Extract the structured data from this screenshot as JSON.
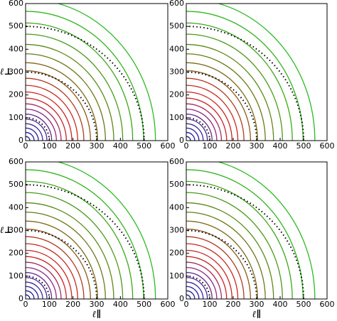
{
  "chart_data": [
    {
      "type": "contour",
      "xlim": [
        0,
        600
      ],
      "ylim": [
        0,
        600
      ],
      "xticks": [
        0,
        100,
        200,
        300,
        400,
        500,
        600
      ],
      "yticks": [
        0,
        100,
        200,
        300,
        400,
        500,
        600
      ],
      "ylabel": "ℓ⊥",
      "circles": [
        100,
        300,
        500
      ],
      "levels": [
        {
          "color": "#1a1aa0",
          "a": 18,
          "b": 18
        },
        {
          "color": "#1a1aa0",
          "a": 36,
          "b": 36
        },
        {
          "color": "#2a22a0",
          "a": 54,
          "b": 55
        },
        {
          "color": "#3a26a0",
          "a": 72,
          "b": 74
        },
        {
          "color": "#4b2a9a",
          "a": 90,
          "b": 94
        },
        {
          "color": "#6a2a90",
          "a": 110,
          "b": 116
        },
        {
          "color": "#8a2b80",
          "a": 130,
          "b": 138
        },
        {
          "color": "#a52a5a",
          "a": 150,
          "b": 161
        },
        {
          "color": "#cc2222",
          "a": 172,
          "b": 186
        },
        {
          "color": "#cc2222",
          "a": 195,
          "b": 213
        },
        {
          "color": "#c82a20",
          "a": 220,
          "b": 242
        },
        {
          "color": "#b03a1e",
          "a": 246,
          "b": 273
        },
        {
          "color": "#8e5a1a",
          "a": 274,
          "b": 306
        },
        {
          "color": "#7d6a16",
          "a": 304,
          "b": 341
        },
        {
          "color": "#6a7a14",
          "a": 337,
          "b": 380
        },
        {
          "color": "#5a8a14",
          "a": 372,
          "b": 421
        },
        {
          "color": "#4a9a16",
          "a": 410,
          "b": 466
        },
        {
          "color": "#3aaa18",
          "a": 452,
          "b": 515
        },
        {
          "color": "#30b41c",
          "a": 498,
          "b": 566
        },
        {
          "color": "#2cba20",
          "a": 548,
          "b": 620
        }
      ]
    },
    {
      "type": "contour",
      "xlim": [
        0,
        600
      ],
      "ylim": [
        0,
        600
      ],
      "xticks": [
        0,
        100,
        200,
        300,
        400,
        500,
        600
      ],
      "yticks": [
        0,
        100,
        200,
        300,
        400,
        500,
        600
      ],
      "circles": [
        100,
        300,
        500
      ],
      "levels": [
        {
          "color": "#1a1aa0",
          "a": 18,
          "b": 18
        },
        {
          "color": "#1a1aa0",
          "a": 36,
          "b": 36
        },
        {
          "color": "#2a22a0",
          "a": 54,
          "b": 55
        },
        {
          "color": "#3a26a0",
          "a": 72,
          "b": 74
        },
        {
          "color": "#4b2a9a",
          "a": 90,
          "b": 94
        },
        {
          "color": "#6a2a90",
          "a": 110,
          "b": 116
        },
        {
          "color": "#8a2b80",
          "a": 130,
          "b": 138
        },
        {
          "color": "#a52a5a",
          "a": 150,
          "b": 161
        },
        {
          "color": "#cc2222",
          "a": 172,
          "b": 186
        },
        {
          "color": "#cc2222",
          "a": 195,
          "b": 213
        },
        {
          "color": "#c82a20",
          "a": 220,
          "b": 242
        },
        {
          "color": "#b03a1e",
          "a": 246,
          "b": 273
        },
        {
          "color": "#8e5a1a",
          "a": 274,
          "b": 306
        },
        {
          "color": "#7d6a16",
          "a": 304,
          "b": 341
        },
        {
          "color": "#6a7a14",
          "a": 337,
          "b": 380
        },
        {
          "color": "#5a8a14",
          "a": 372,
          "b": 421
        },
        {
          "color": "#4a9a16",
          "a": 410,
          "b": 466
        },
        {
          "color": "#3aaa18",
          "a": 452,
          "b": 515
        },
        {
          "color": "#30b41c",
          "a": 498,
          "b": 566
        },
        {
          "color": "#2cba20",
          "a": 548,
          "b": 620
        }
      ]
    },
    {
      "type": "contour",
      "xlim": [
        0,
        600
      ],
      "ylim": [
        0,
        600
      ],
      "xticks": [
        0,
        100,
        200,
        300,
        400,
        500,
        600
      ],
      "yticks": [
        0,
        100,
        200,
        300,
        400,
        500,
        600
      ],
      "ylabel": "ℓ⊥",
      "xlabel": "ℓ∥",
      "circles": [
        100,
        300,
        500
      ],
      "levels": [
        {
          "color": "#1a1aa0",
          "a": 18,
          "b": 18
        },
        {
          "color": "#1a1aa0",
          "a": 36,
          "b": 36
        },
        {
          "color": "#2a22a0",
          "a": 54,
          "b": 55
        },
        {
          "color": "#3a26a0",
          "a": 72,
          "b": 74
        },
        {
          "color": "#4b2a9a",
          "a": 90,
          "b": 94
        },
        {
          "color": "#6a2a90",
          "a": 110,
          "b": 116
        },
        {
          "color": "#8a2b80",
          "a": 130,
          "b": 138
        },
        {
          "color": "#a52a5a",
          "a": 150,
          "b": 161
        },
        {
          "color": "#cc2222",
          "a": 172,
          "b": 186
        },
        {
          "color": "#cc2222",
          "a": 195,
          "b": 213
        },
        {
          "color": "#c82a20",
          "a": 220,
          "b": 242
        },
        {
          "color": "#b03a1e",
          "a": 246,
          "b": 273
        },
        {
          "color": "#8e5a1a",
          "a": 274,
          "b": 306
        },
        {
          "color": "#7d6a16",
          "a": 304,
          "b": 341
        },
        {
          "color": "#6a7a14",
          "a": 337,
          "b": 380
        },
        {
          "color": "#5a8a14",
          "a": 372,
          "b": 421
        },
        {
          "color": "#4a9a16",
          "a": 410,
          "b": 466
        },
        {
          "color": "#3aaa18",
          "a": 452,
          "b": 515
        },
        {
          "color": "#30b41c",
          "a": 498,
          "b": 566
        },
        {
          "color": "#2cba20",
          "a": 548,
          "b": 620
        }
      ]
    },
    {
      "type": "contour",
      "xlim": [
        0,
        600
      ],
      "ylim": [
        0,
        600
      ],
      "xticks": [
        0,
        100,
        200,
        300,
        400,
        500,
        600
      ],
      "yticks": [
        0,
        100,
        200,
        300,
        400,
        500,
        600
      ],
      "xlabel": "ℓ∥",
      "circles": [
        100,
        300,
        500
      ],
      "levels": [
        {
          "color": "#1a1aa0",
          "a": 18,
          "b": 18
        },
        {
          "color": "#1a1aa0",
          "a": 36,
          "b": 36
        },
        {
          "color": "#2a22a0",
          "a": 54,
          "b": 55
        },
        {
          "color": "#3a26a0",
          "a": 72,
          "b": 74
        },
        {
          "color": "#4b2a9a",
          "a": 90,
          "b": 94
        },
        {
          "color": "#6a2a90",
          "a": 110,
          "b": 116
        },
        {
          "color": "#8a2b80",
          "a": 130,
          "b": 138
        },
        {
          "color": "#a52a5a",
          "a": 150,
          "b": 161
        },
        {
          "color": "#cc2222",
          "a": 172,
          "b": 186
        },
        {
          "color": "#cc2222",
          "a": 195,
          "b": 213
        },
        {
          "color": "#c82a20",
          "a": 220,
          "b": 242
        },
        {
          "color": "#b03a1e",
          "a": 246,
          "b": 273
        },
        {
          "color": "#8e5a1a",
          "a": 274,
          "b": 306
        },
        {
          "color": "#7d6a16",
          "a": 304,
          "b": 341
        },
        {
          "color": "#6a7a14",
          "a": 337,
          "b": 380
        },
        {
          "color": "#5a8a14",
          "a": 372,
          "b": 421
        },
        {
          "color": "#4a9a16",
          "a": 410,
          "b": 466
        },
        {
          "color": "#3aaa18",
          "a": 452,
          "b": 515
        },
        {
          "color": "#30b41c",
          "a": 498,
          "b": 566
        },
        {
          "color": "#2cba20",
          "a": 548,
          "b": 620
        }
      ]
    }
  ]
}
